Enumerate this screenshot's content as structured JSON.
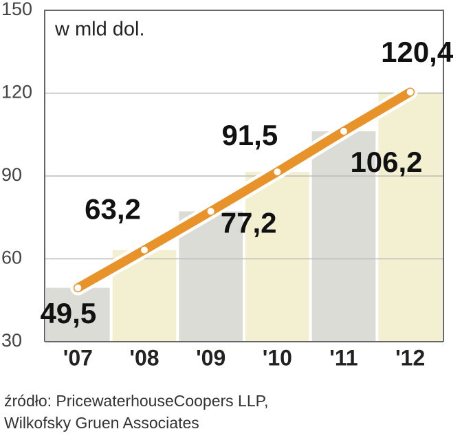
{
  "chart_data": {
    "type": "line",
    "unit_label": "w mld dol.",
    "categories": [
      "'07",
      "'08",
      "'09",
      "'10",
      "'11",
      "'12"
    ],
    "values": [
      49.5,
      63.2,
      77.2,
      91.5,
      106.2,
      120.4
    ],
    "value_labels": [
      "49,5",
      "63,2",
      "77,2",
      "91,5",
      "106,2",
      "120,4"
    ],
    "color": "#e8922a",
    "bar_colors": [
      "#dcdcd6",
      "#f3f0d2"
    ],
    "ylim": [
      30,
      150
    ],
    "yticks": [
      30,
      60,
      90,
      120,
      150
    ],
    "grid": true,
    "source": [
      "źródło:  PricewaterhouseCoopers LLP,",
      "Wilkofsky  Gruen Associates"
    ]
  }
}
